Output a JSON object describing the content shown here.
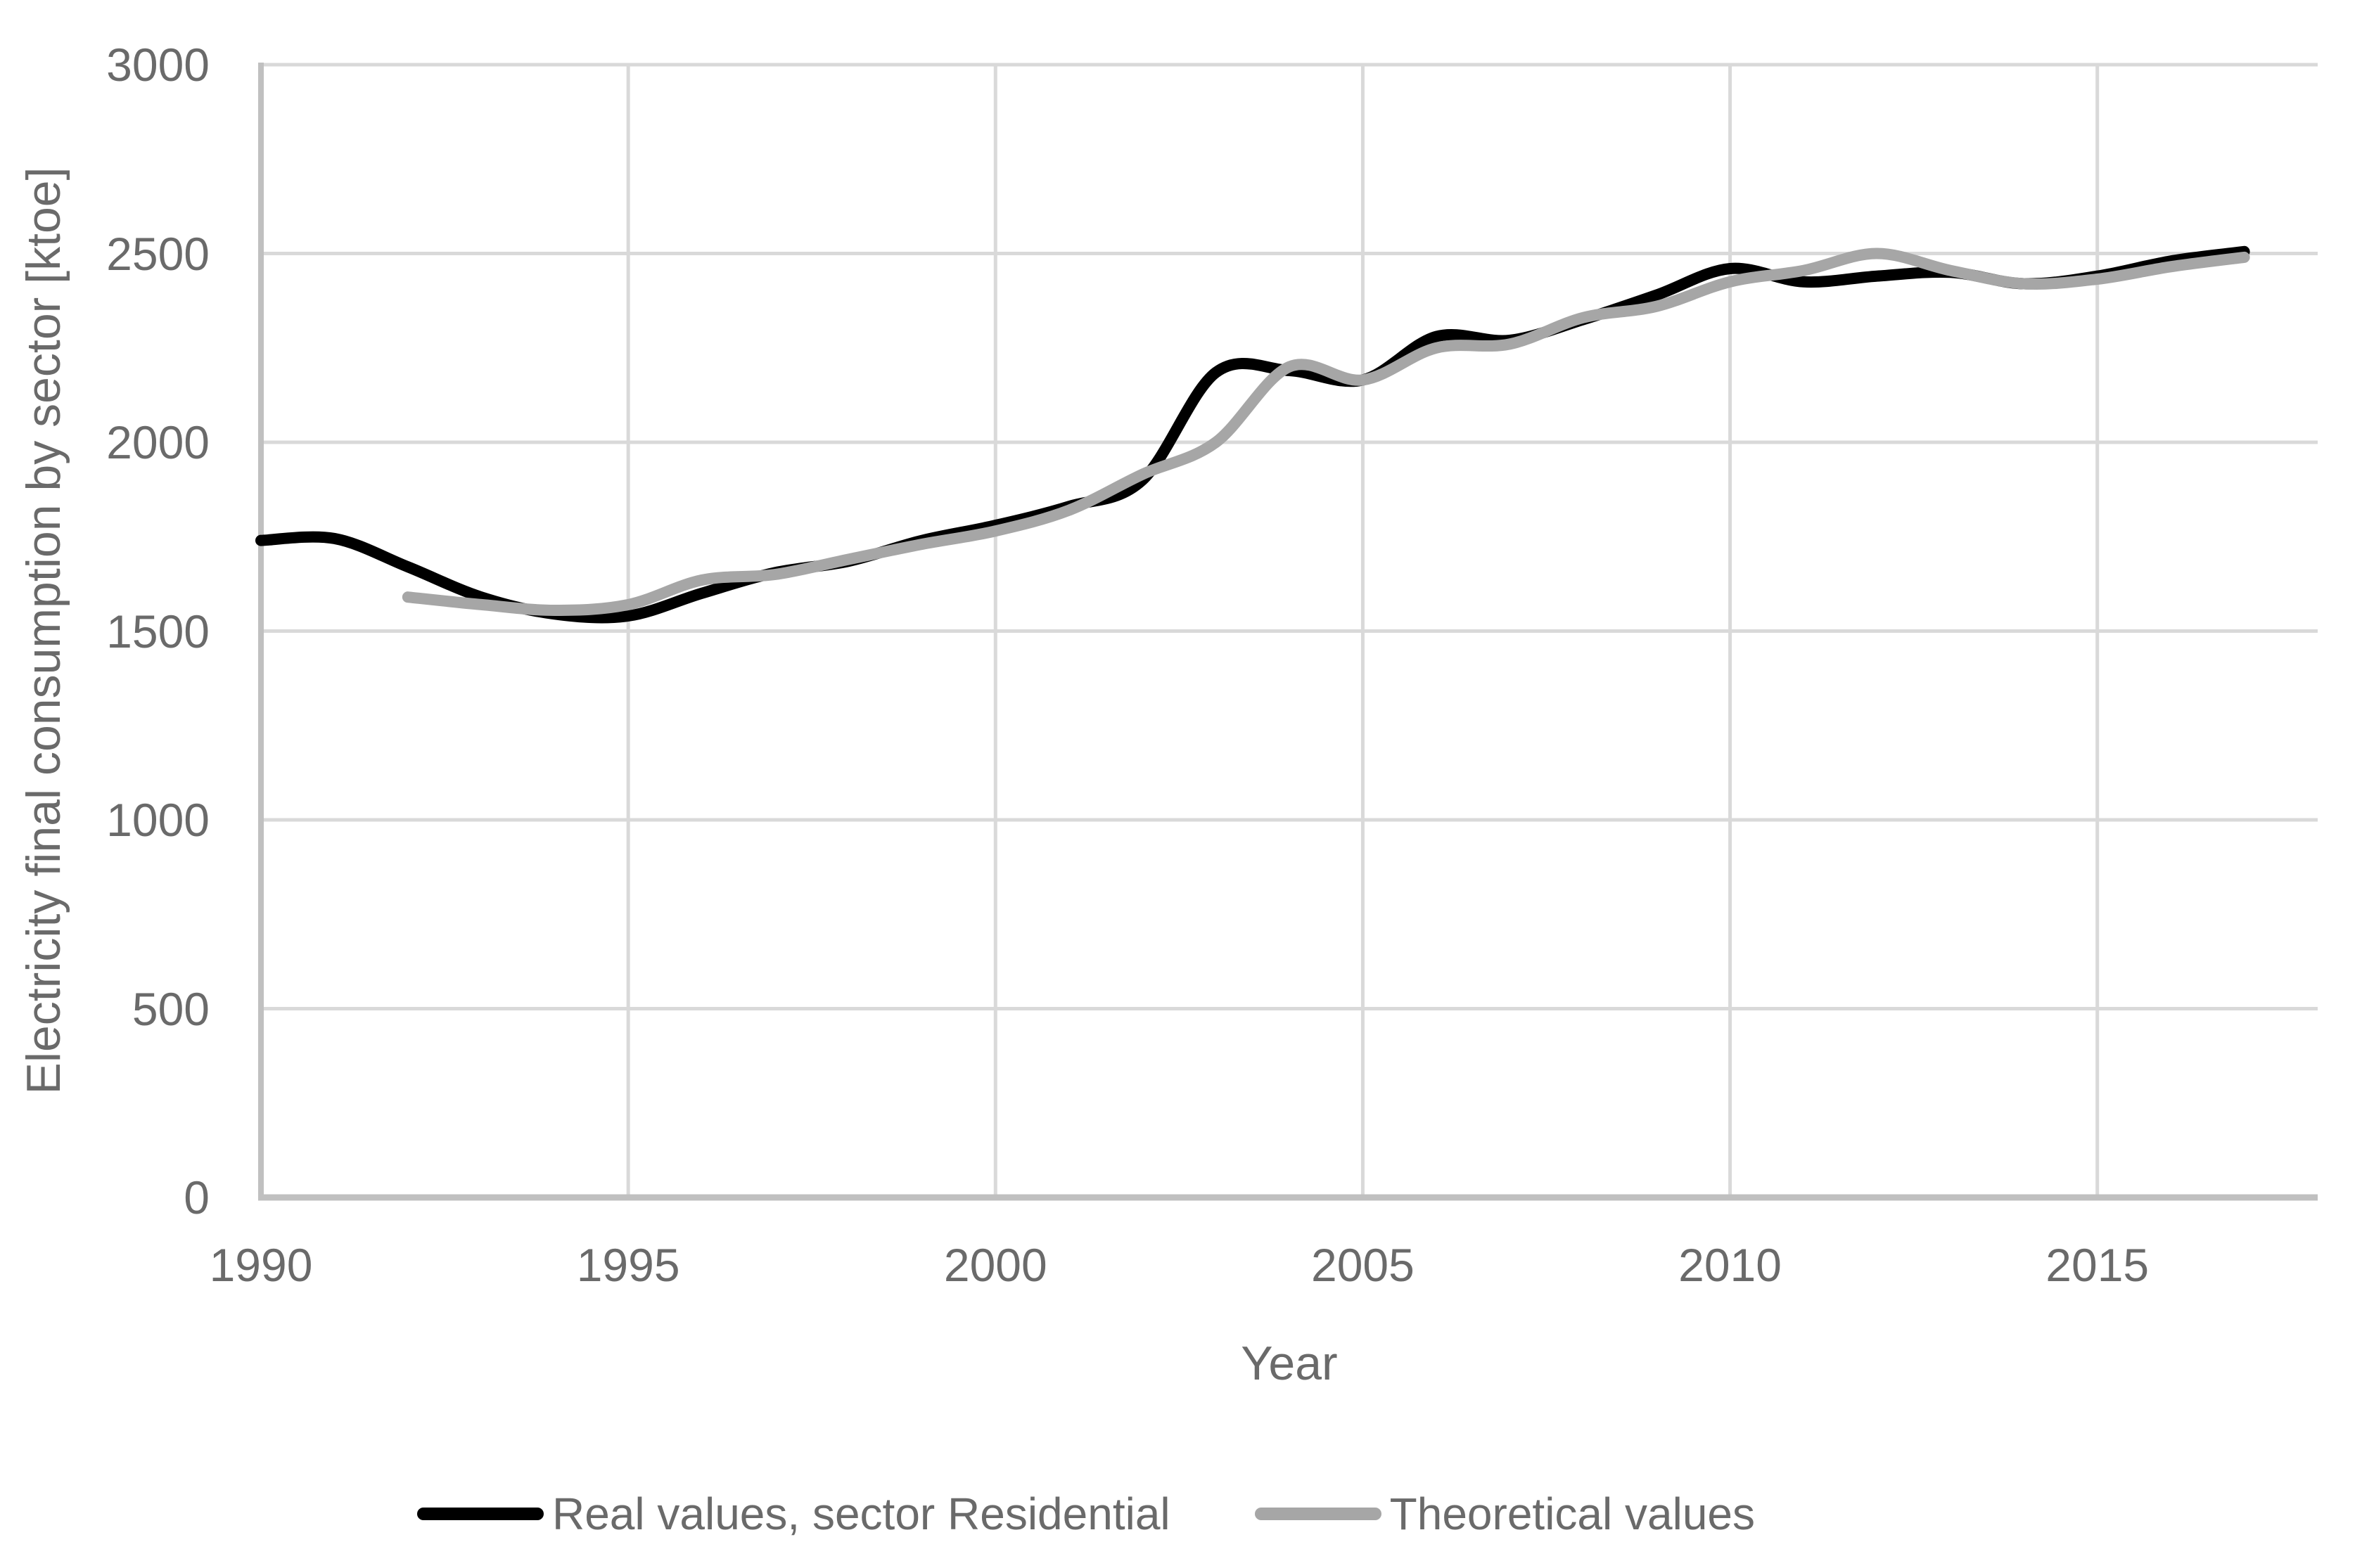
{
  "chart_data": {
    "type": "line",
    "title": "",
    "xlabel": "Year",
    "ylabel": "Electricity final consumption by sector [ktoe]",
    "xlim": [
      1990,
      2018
    ],
    "ylim": [
      0,
      3000
    ],
    "x_ticks": [
      1990,
      1995,
      2000,
      2005,
      2010,
      2015
    ],
    "y_ticks": [
      0,
      500,
      1000,
      1500,
      2000,
      2500,
      3000
    ],
    "grid": true,
    "legend_position": "bottom-center",
    "x": [
      1990,
      1991,
      1992,
      1993,
      1994,
      1995,
      1996,
      1997,
      1998,
      1999,
      2000,
      2001,
      2002,
      2003,
      2004,
      2005,
      2006,
      2007,
      2008,
      2009,
      2010,
      2011,
      2012,
      2013,
      2014,
      2015,
      2016,
      2017
    ],
    "series": [
      {
        "name": "Real values, sector Residential",
        "color": "#000000",
        "start_year": 1990,
        "values": [
          1740,
          1745,
          1670,
          1590,
          1545,
          1540,
          1600,
          1655,
          1685,
          1740,
          1780,
          1830,
          1900,
          2185,
          2190,
          2165,
          2280,
          2270,
          2325,
          2390,
          2460,
          2425,
          2440,
          2450,
          2420,
          2440,
          2480,
          2505
        ]
      },
      {
        "name": "Theoretical values",
        "color": "#a6a6a6",
        "start_year": 1992,
        "values": [
          1590,
          1570,
          1555,
          1570,
          1635,
          1650,
          1690,
          1730,
          1765,
          1820,
          1915,
          2000,
          2200,
          2165,
          2250,
          2260,
          2330,
          2360,
          2425,
          2455,
          2500,
          2455,
          2420,
          2432,
          2465,
          2490
        ]
      }
    ]
  },
  "colors": {
    "gridline": "#d9d9d9",
    "axis_line": "#c0c0c0",
    "tick_text": "#6a6a6a",
    "background": "#ffffff"
  }
}
